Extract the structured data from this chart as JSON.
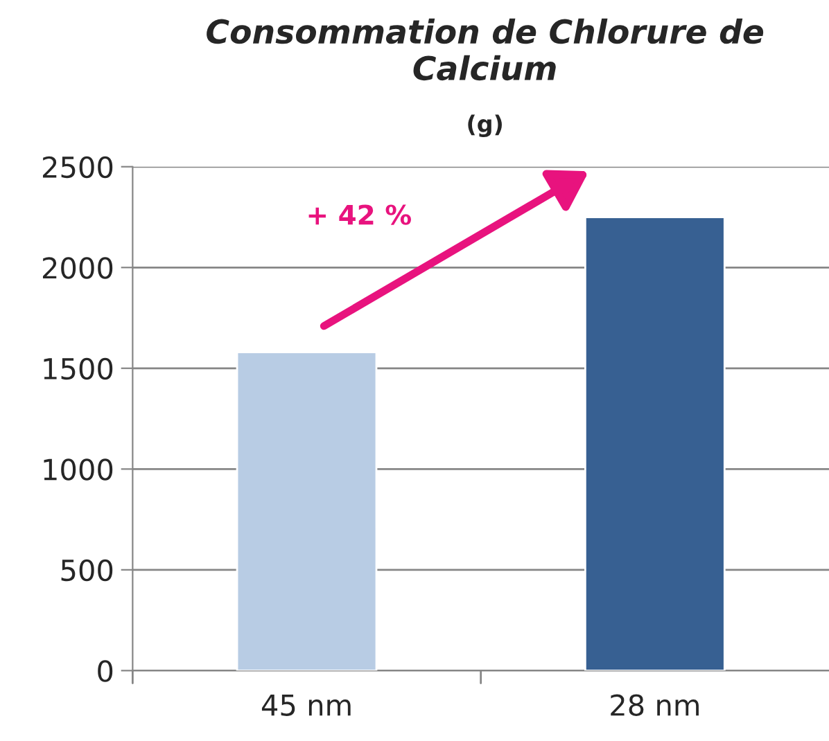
{
  "chart_data": {
    "type": "bar",
    "title": "Consommation de Chlorure de Calcium",
    "subtitle": "(g)",
    "categories": [
      "45 nm",
      "28 nm"
    ],
    "values": [
      1580,
      2250
    ],
    "colors": [
      "#b8cce4",
      "#376092"
    ],
    "ylim": [
      0,
      2500
    ],
    "yticks": [
      0,
      500,
      1000,
      1500,
      2000,
      2500
    ],
    "grid": "y",
    "annotations": [
      "+ 42 %"
    ]
  }
}
